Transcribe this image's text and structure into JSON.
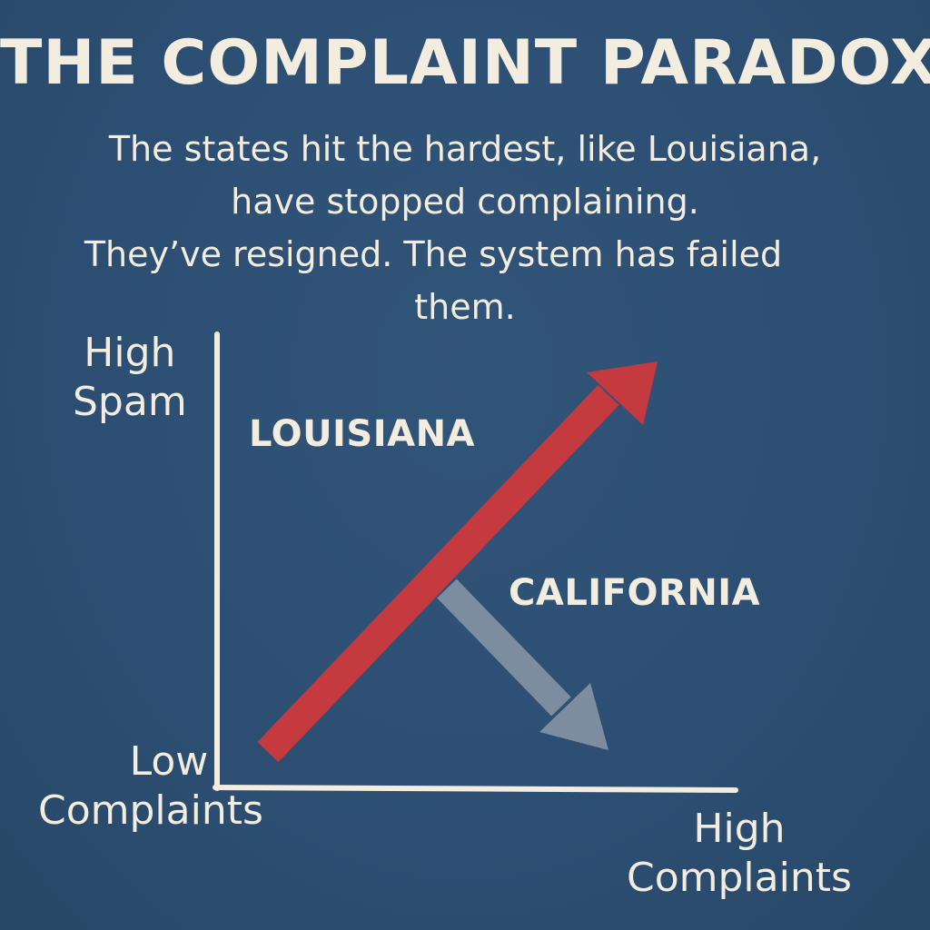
{
  "title": "THE COMPLAINT PARADOX",
  "subtitle": {
    "lines": [
      "The states hit the hardest, like Louisiana,",
      "have stopped complaining.",
      "They’ve resigned. The system has failed",
      "them."
    ]
  },
  "axes": {
    "y_high": [
      "High",
      "Spam"
    ],
    "origin": [
      "Low",
      "Complaints"
    ],
    "x_high": [
      "High",
      "Complaints"
    ]
  },
  "states": {
    "louisiana": "LOUISIANA",
    "california": "CALIFORNIA"
  },
  "colors": {
    "background": "#2d5075",
    "text": "#f3ede0",
    "axis": "#f3ede0",
    "louisiana_arrow": "#c43a3e",
    "california_arrow": "#7d8da0"
  },
  "arrows": [
    {
      "name": "louisiana-trend-arrow",
      "direction": "up-right",
      "color_key": "louisiana_arrow"
    },
    {
      "name": "california-trend-arrow",
      "direction": "down-right",
      "color_key": "california_arrow"
    }
  ]
}
